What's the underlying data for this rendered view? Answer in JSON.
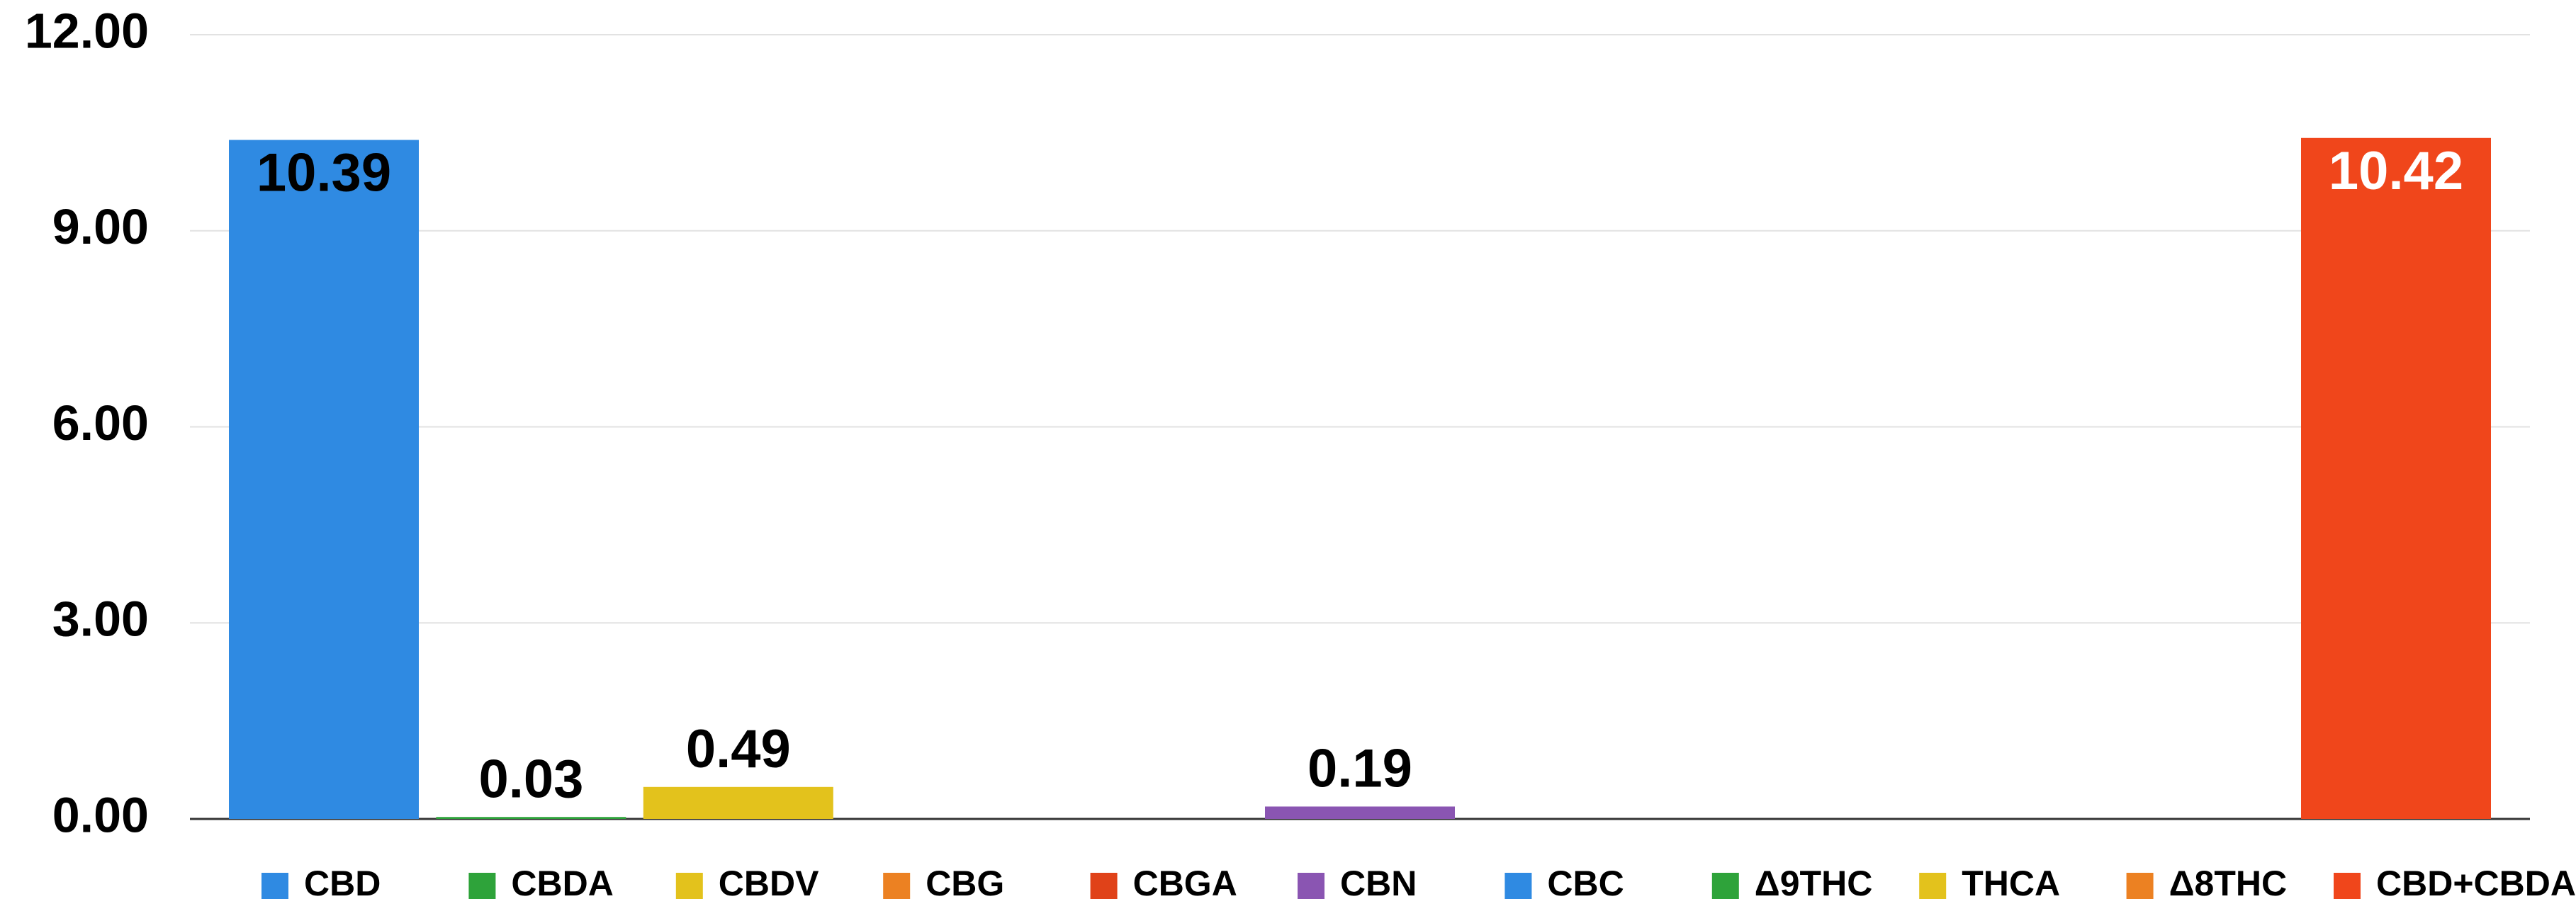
{
  "chart_data": {
    "type": "bar",
    "categories": [
      "CBD",
      "CBDA",
      "CBDV",
      "CBG",
      "CBGA",
      "CBN",
      "CBC",
      "Δ9THC",
      "THCA",
      "Δ8THC",
      "CBD+CBDA"
    ],
    "values": [
      10.39,
      0.03,
      0.49,
      0,
      0,
      0.19,
      0,
      0,
      0,
      0,
      10.42
    ],
    "colors": [
      "#2f8ae2",
      "#2ea33a",
      "#e3c21c",
      "#ec8122",
      "#e04219",
      "#8a55b2",
      "#2f8ae2",
      "#2ea33a",
      "#e3c21c",
      "#ec8122",
      "#f0461b"
    ],
    "value_label_colors": [
      "#000000",
      "#000000",
      "#000000",
      "#000000",
      "#000000",
      "#000000",
      "#000000",
      "#000000",
      "#000000",
      "#000000",
      "#ffffff"
    ],
    "ylim": [
      0,
      12
    ],
    "yticks": [
      {
        "value": 0,
        "label": "0.00"
      },
      {
        "value": 3,
        "label": "3.00"
      },
      {
        "value": 6,
        "label": "6.00"
      },
      {
        "value": 9,
        "label": "9.00"
      },
      {
        "value": 12,
        "label": "12.00"
      }
    ],
    "grid": true
  }
}
